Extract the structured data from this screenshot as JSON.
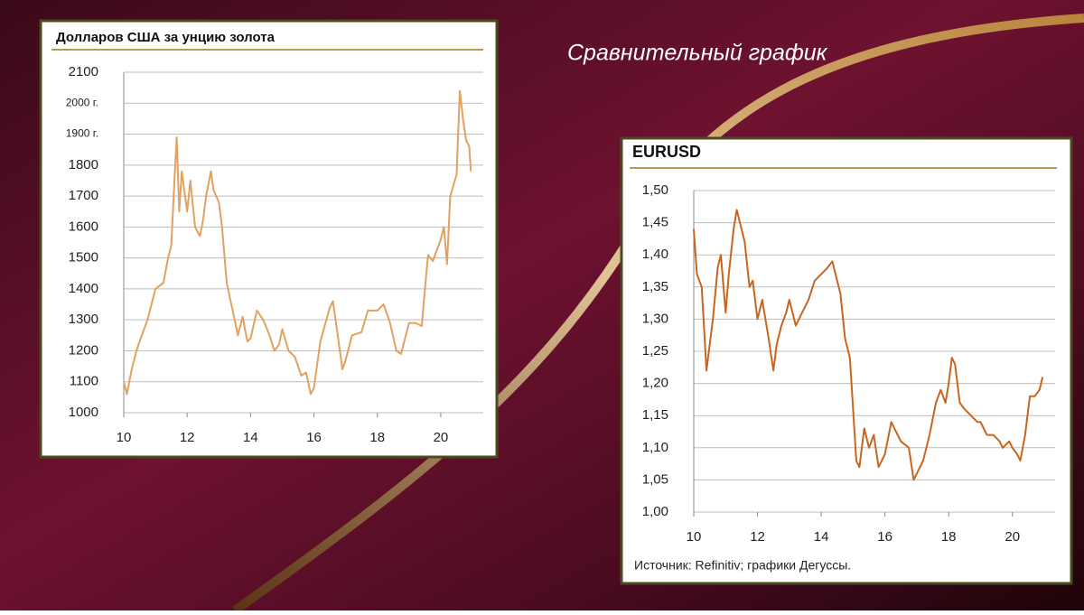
{
  "title": "Сравнительный график",
  "chart_data": [
    {
      "type": "line",
      "title": "Долларов США за унцию золота",
      "color": "#e2a15e",
      "grid": true,
      "xlim": [
        10,
        21
      ],
      "xticks": [
        10,
        12,
        14,
        16,
        18,
        20
      ],
      "ylim": [
        1000,
        2100
      ],
      "yticks": [
        1000,
        1100,
        1200,
        1300,
        1400,
        1500,
        1600,
        1700,
        1800,
        {
          "value": 1900,
          "label": "1900 г."
        },
        {
          "value": 2000,
          "label": "2000 г."
        },
        2100
      ],
      "x": [
        10.0,
        10.1,
        10.25,
        10.4,
        10.5,
        10.75,
        11.0,
        11.25,
        11.4,
        11.5,
        11.6,
        11.67,
        11.75,
        11.83,
        12.0,
        12.1,
        12.25,
        12.4,
        12.5,
        12.6,
        12.75,
        12.83,
        13.0,
        13.1,
        13.25,
        13.33,
        13.5,
        13.6,
        13.75,
        13.9,
        14.0,
        14.2,
        14.4,
        14.6,
        14.75,
        14.9,
        15.0,
        15.2,
        15.4,
        15.6,
        15.75,
        15.9,
        16.0,
        16.2,
        16.5,
        16.6,
        16.75,
        16.9,
        17.0,
        17.2,
        17.5,
        17.7,
        18.0,
        18.2,
        18.4,
        18.6,
        18.75,
        19.0,
        19.2,
        19.4,
        19.5,
        19.6,
        19.75,
        20.0,
        20.1,
        20.2,
        20.3,
        20.5,
        20.6,
        20.7,
        20.8,
        20.9,
        20.95
      ],
      "values": [
        1100,
        1060,
        1140,
        1200,
        1230,
        1300,
        1400,
        1420,
        1500,
        1540,
        1750,
        1890,
        1650,
        1780,
        1650,
        1750,
        1600,
        1570,
        1620,
        1700,
        1780,
        1720,
        1680,
        1600,
        1420,
        1380,
        1300,
        1250,
        1310,
        1230,
        1240,
        1330,
        1300,
        1250,
        1200,
        1220,
        1270,
        1200,
        1180,
        1120,
        1130,
        1060,
        1080,
        1230,
        1340,
        1360,
        1250,
        1140,
        1170,
        1250,
        1260,
        1330,
        1330,
        1350,
        1290,
        1200,
        1190,
        1290,
        1290,
        1280,
        1400,
        1510,
        1490,
        1560,
        1600,
        1480,
        1700,
        1770,
        2040,
        1950,
        1880,
        1860,
        1780
      ]
    },
    {
      "type": "line",
      "title": "EURUSD",
      "color": "#c8651f",
      "grid": true,
      "source": "Источник: Refinitiv; графики Дегуссы.",
      "xlim": [
        10,
        21
      ],
      "xticks": [
        10,
        12,
        14,
        16,
        18,
        20
      ],
      "ylim": [
        1.0,
        1.5
      ],
      "yticks": [
        {
          "value": 1.0,
          "label": "1,00"
        },
        {
          "value": 1.05,
          "label": "1,05"
        },
        {
          "value": 1.1,
          "label": "1,10"
        },
        {
          "value": 1.15,
          "label": "1,15"
        },
        {
          "value": 1.2,
          "label": "1,20"
        },
        {
          "value": 1.25,
          "label": "1,25"
        },
        {
          "value": 1.3,
          "label": "1,30"
        },
        {
          "value": 1.35,
          "label": "1,35"
        },
        {
          "value": 1.4,
          "label": "1,40"
        },
        {
          "value": 1.45,
          "label": "1,45"
        },
        {
          "value": 1.5,
          "label": "1,50"
        }
      ],
      "x": [
        10.0,
        10.1,
        10.25,
        10.4,
        10.5,
        10.6,
        10.75,
        10.85,
        11.0,
        11.1,
        11.25,
        11.35,
        11.5,
        11.6,
        11.75,
        11.85,
        12.0,
        12.15,
        12.35,
        12.5,
        12.6,
        12.75,
        12.9,
        13.0,
        13.2,
        13.4,
        13.6,
        13.8,
        14.0,
        14.2,
        14.35,
        14.5,
        14.6,
        14.75,
        14.9,
        15.0,
        15.1,
        15.2,
        15.35,
        15.5,
        15.65,
        15.8,
        16.0,
        16.2,
        16.4,
        16.5,
        16.75,
        16.9,
        17.0,
        17.2,
        17.4,
        17.6,
        17.75,
        17.9,
        18.0,
        18.1,
        18.2,
        18.35,
        18.5,
        18.7,
        18.9,
        19.0,
        19.2,
        19.4,
        19.6,
        19.7,
        19.9,
        20.0,
        20.15,
        20.25,
        20.4,
        20.55,
        20.7,
        20.85,
        20.95
      ],
      "values": [
        1.44,
        1.37,
        1.35,
        1.22,
        1.26,
        1.3,
        1.38,
        1.4,
        1.31,
        1.37,
        1.44,
        1.47,
        1.44,
        1.42,
        1.35,
        1.36,
        1.3,
        1.33,
        1.27,
        1.22,
        1.26,
        1.29,
        1.31,
        1.33,
        1.29,
        1.31,
        1.33,
        1.36,
        1.37,
        1.38,
        1.39,
        1.36,
        1.34,
        1.27,
        1.24,
        1.16,
        1.08,
        1.07,
        1.13,
        1.1,
        1.12,
        1.07,
        1.09,
        1.14,
        1.12,
        1.11,
        1.1,
        1.05,
        1.06,
        1.08,
        1.12,
        1.17,
        1.19,
        1.17,
        1.2,
        1.24,
        1.23,
        1.17,
        1.16,
        1.15,
        1.14,
        1.14,
        1.12,
        1.12,
        1.11,
        1.1,
        1.11,
        1.1,
        1.09,
        1.08,
        1.12,
        1.18,
        1.18,
        1.19,
        1.21
      ]
    }
  ]
}
